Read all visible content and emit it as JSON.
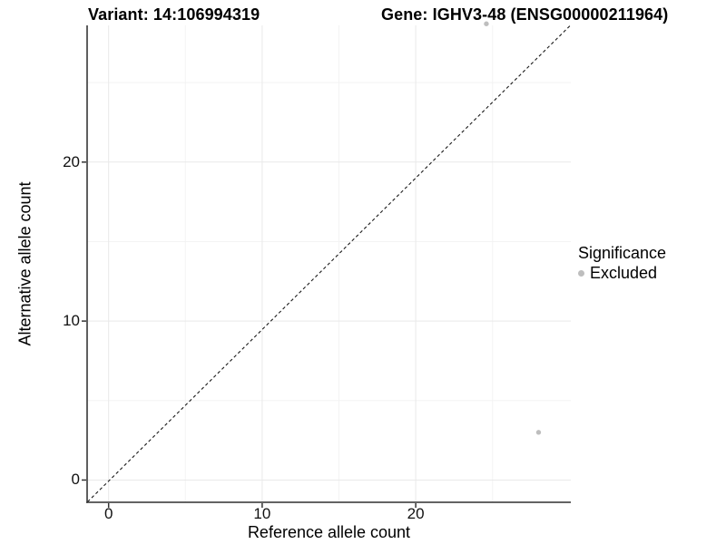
{
  "chart_data": {
    "type": "scatter",
    "title_left": "Variant: 14:106994319",
    "title_right": "Gene: IGHV3-48 (ENSG00000211964)",
    "xlabel": "Reference allele count",
    "ylabel": "Alternative allele count",
    "xlim": [
      -1.4,
      30.1
    ],
    "ylim": [
      -1.4,
      28.6
    ],
    "x_ticks": [
      0,
      10,
      20
    ],
    "y_ticks": [
      0,
      10,
      20
    ],
    "x_minor_ticks": [
      5,
      15,
      25
    ],
    "y_minor_ticks": [
      5,
      15,
      25
    ],
    "grid": true,
    "legend_position": "right",
    "reference_line": {
      "type": "identity",
      "slope": 1,
      "intercept": 0,
      "style": "dashed",
      "color": "#1a1a1a"
    },
    "series": [
      {
        "name": "Excluded",
        "color": "#bebebe",
        "points": [
          {
            "x": 28,
            "y": 3
          },
          {
            "x": 24.6,
            "y": 28.7
          }
        ]
      }
    ],
    "legend": {
      "title": "Significance",
      "entries": [
        {
          "label": "Excluded",
          "color": "#bebebe"
        }
      ]
    },
    "colors": {
      "grid_major": "#e9e9e9",
      "grid_minor": "#f3f3f3",
      "axis_line": "#4d4d4d",
      "tick_mark": "#333333"
    }
  }
}
